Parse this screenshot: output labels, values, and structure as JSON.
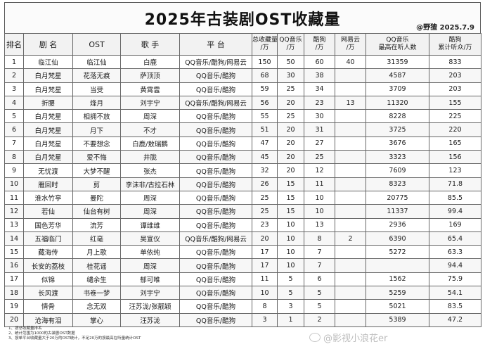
{
  "title": "2025年古装剧OST收藏量",
  "credit": "@野猹 2025.7.9",
  "headers": {
    "rank": "排名",
    "drama": "剧 名",
    "ost": "OST",
    "singer": "歌 手",
    "platform": "平 台",
    "total": [
      "总收藏量",
      "/万"
    ],
    "qq": [
      "QQ音乐",
      "/万"
    ],
    "kugou": [
      "酷狗",
      "/万"
    ],
    "netease": [
      "网易云",
      "/万"
    ],
    "qq_peak": [
      "QQ音乐",
      "最高在听人数"
    ],
    "kugou_listen": [
      "酷狗",
      "累计听众/万"
    ]
  },
  "rows": [
    {
      "rank": "1",
      "drama": "临江仙",
      "ost": "临江仙",
      "singer": "白鹿",
      "platform": "QQ音乐/酷狗/网易云",
      "total": "150",
      "qq": "50",
      "kugou": "60",
      "netease": "40",
      "qq_peak": "31359",
      "kugou_listen": "833"
    },
    {
      "rank": "2",
      "drama": "白月梵星",
      "ost": "花落无痕",
      "singer": "萨顶顶",
      "platform": "QQ音乐/酷狗",
      "total": "68",
      "qq": "30",
      "kugou": "38",
      "netease": "",
      "qq_peak": "4587",
      "kugou_listen": "203"
    },
    {
      "rank": "3",
      "drama": "白月梵星",
      "ost": "当受",
      "singer": "黄霄雲",
      "platform": "QQ音乐/酷狗",
      "total": "59",
      "qq": "25",
      "kugou": "34",
      "netease": "",
      "qq_peak": "3709",
      "kugou_listen": "203"
    },
    {
      "rank": "4",
      "drama": "折腰",
      "ost": "烽月",
      "singer": "刘宇宁",
      "platform": "QQ音乐/酷狗/网易云",
      "total": "56",
      "qq": "20",
      "kugou": "23",
      "netease": "13",
      "qq_peak": "11320",
      "kugou_listen": "155"
    },
    {
      "rank": "5",
      "drama": "白月梵星",
      "ost": "相拥不放",
      "singer": "周深",
      "platform": "QQ音乐/酷狗",
      "total": "55",
      "qq": "25",
      "kugou": "30",
      "netease": "",
      "qq_peak": "8228",
      "kugou_listen": "225"
    },
    {
      "rank": "6",
      "drama": "白月梵星",
      "ost": "月下",
      "singer": "不才",
      "platform": "QQ音乐/酷狗",
      "total": "51",
      "qq": "20",
      "kugou": "31",
      "netease": "",
      "qq_peak": "3725",
      "kugou_listen": "220"
    },
    {
      "rank": "7",
      "drama": "白月梵星",
      "ost": "不要想念",
      "singer": "白鹿/敖瑞鹏",
      "platform": "QQ音乐/酷狗",
      "total": "47",
      "qq": "20",
      "kugou": "27",
      "netease": "",
      "qq_peak": "3676",
      "kugou_listen": "165"
    },
    {
      "rank": "8",
      "drama": "白月梵星",
      "ost": "爱不悔",
      "singer": "井胧",
      "platform": "QQ音乐/酷狗",
      "total": "45",
      "qq": "20",
      "kugou": "25",
      "netease": "",
      "qq_peak": "3323",
      "kugou_listen": "156"
    },
    {
      "rank": "9",
      "drama": "无忧渡",
      "ost": "大梦不醒",
      "singer": "张杰",
      "platform": "QQ音乐/酷狗",
      "total": "32",
      "qq": "20",
      "kugou": "12",
      "netease": "",
      "qq_peak": "7609",
      "kugou_listen": "123"
    },
    {
      "rank": "10",
      "drama": "雁回时",
      "ost": "剪",
      "singer": "李沫非/古拉石林",
      "platform": "QQ音乐/酷狗",
      "total": "26",
      "qq": "15",
      "kugou": "11",
      "netease": "",
      "qq_peak": "8323",
      "kugou_listen": "71.8"
    },
    {
      "rank": "11",
      "drama": "淮水竹亭",
      "ost": "曼陀",
      "singer": "周深",
      "platform": "QQ音乐/酷狗",
      "total": "25",
      "qq": "15",
      "kugou": "10",
      "netease": "",
      "qq_peak": "20775",
      "kugou_listen": "85.5"
    },
    {
      "rank": "12",
      "drama": "若仙",
      "ost": "仙台有树",
      "singer": "周深",
      "platform": "QQ音乐/酷狗",
      "total": "25",
      "qq": "15",
      "kugou": "10",
      "netease": "",
      "qq_peak": "11337",
      "kugou_listen": "99.4"
    },
    {
      "rank": "13",
      "drama": "国色芳华",
      "ost": "流芳",
      "singer": "谭维维",
      "platform": "QQ音乐/酷狗",
      "total": "23",
      "qq": "10",
      "kugou": "13",
      "netease": "",
      "qq_peak": "2936",
      "kugou_listen": "169"
    },
    {
      "rank": "14",
      "drama": "五福临门",
      "ost": "红毫",
      "singer": "吴宣仪",
      "platform": "QQ音乐/酷狗/网易云",
      "total": "20",
      "qq": "10",
      "kugou": "8",
      "netease": "2",
      "qq_peak": "6390",
      "kugou_listen": "65.4"
    },
    {
      "rank": "15",
      "drama": "藏海传",
      "ost": "月上歌",
      "singer": "单依纯",
      "platform": "QQ音乐/酷狗",
      "total": "17",
      "qq": "10",
      "kugou": "7",
      "netease": "",
      "qq_peak": "5272",
      "kugou_listen": "63.3"
    },
    {
      "rank": "16",
      "drama": "长安的荔枝",
      "ost": "桂花谣",
      "singer": "周深",
      "platform": "QQ音乐/酷狗",
      "total": "17",
      "qq": "10",
      "kugou": "7",
      "netease": "",
      "qq_peak": "",
      "kugou_listen": "94.4"
    },
    {
      "rank": "17",
      "drama": "似锦",
      "ost": "缱余生",
      "singer": "郁可唯",
      "platform": "QQ音乐/酷狗",
      "total": "11",
      "qq": "5",
      "kugou": "6",
      "netease": "",
      "qq_peak": "1562",
      "kugou_listen": "75.9"
    },
    {
      "rank": "18",
      "drama": "长风渡",
      "ost": "书卷一梦",
      "singer": "刘宇宁",
      "platform": "QQ音乐/酷狗",
      "total": "10",
      "qq": "5",
      "kugou": "5",
      "netease": "",
      "qq_peak": "5259",
      "kugou_listen": "54.1"
    },
    {
      "rank": "19",
      "drama": "情骨",
      "ost": "念无双",
      "singer": "汪苏泷/张靓颖",
      "platform": "QQ音乐/酷狗",
      "total": "8",
      "qq": "3",
      "kugou": "5",
      "netease": "",
      "qq_peak": "5021",
      "kugou_listen": "83.5"
    },
    {
      "rank": "20",
      "drama": "沧海有泪",
      "ost": "掌心",
      "singer": "汪苏泷",
      "platform": "QQ音乐/酷狗",
      "total": "3",
      "qq": "1",
      "kugou": "2",
      "netease": "",
      "qq_peak": "5389",
      "kugou_listen": "47.2"
    }
  ],
  "footnotes": [
    "1、按总收藏量排名",
    "2、统计范围为1000的古装剧OST数据",
    "3、按单平台收藏量大于20万的OST统计，不足20万的按最高在听量统计OST"
  ],
  "watermark": "@影视小浪花er"
}
